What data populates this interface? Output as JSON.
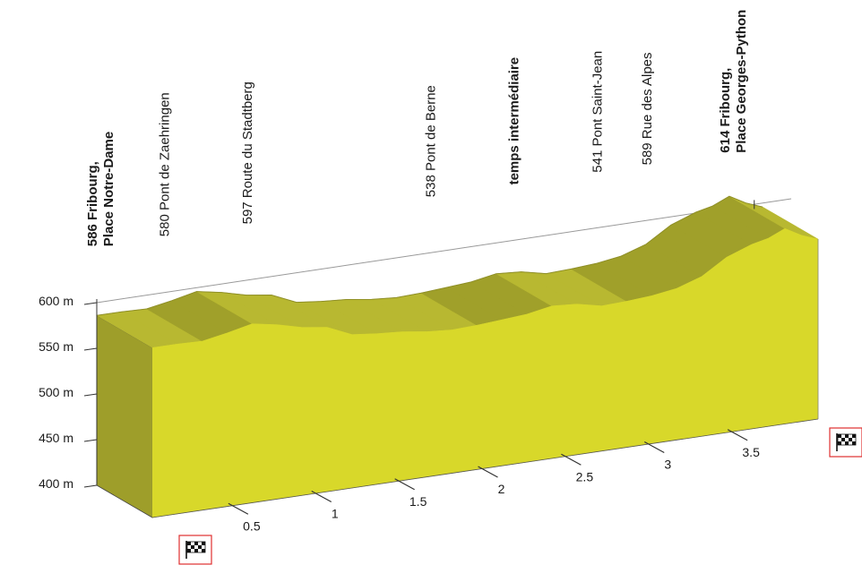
{
  "chart_data": {
    "type": "area",
    "title": "",
    "xlabel": "",
    "ylabel": "",
    "xlim": [
      0,
      4.0
    ],
    "ylim": [
      400,
      600
    ],
    "y_ticks": [
      {
        "value": 400,
        "label": "400 m"
      },
      {
        "value": 450,
        "label": "450 m"
      },
      {
        "value": 500,
        "label": "500 m"
      },
      {
        "value": 550,
        "label": "550 m"
      },
      {
        "value": 600,
        "label": "600 m"
      }
    ],
    "x_ticks": [
      {
        "value": 0.5,
        "label": "0.5"
      },
      {
        "value": 1,
        "label": "1"
      },
      {
        "value": 1.5,
        "label": "1.5"
      },
      {
        "value": 2,
        "label": "2"
      },
      {
        "value": 2.5,
        "label": "2.5"
      },
      {
        "value": 3,
        "label": "3"
      },
      {
        "value": 3.5,
        "label": "3.5"
      }
    ],
    "x": [
      0,
      0.15,
      0.3,
      0.45,
      0.6,
      0.75,
      0.9,
      1.05,
      1.2,
      1.35,
      1.5,
      1.65,
      1.8,
      1.95,
      2.1,
      2.25,
      2.4,
      2.55,
      2.7,
      2.85,
      3.0,
      3.15,
      3.3,
      3.45,
      3.6,
      3.7,
      3.8,
      3.9,
      4.0
    ],
    "y": [
      586,
      586,
      585,
      590,
      596,
      591,
      584,
      580,
      568,
      565,
      563,
      559,
      557,
      558,
      560,
      562,
      567,
      565,
      559,
      560,
      562,
      566,
      575,
      592,
      602,
      606,
      614,
      604,
      597
    ],
    "annotations": [
      {
        "km": 0.0,
        "lines": [
          "586 Fribourg,",
          "Place Notre-Dame"
        ],
        "bold": true
      },
      {
        "km": 0.4,
        "lines": [
          "580 Pont de Zaehringen"
        ],
        "bold": false
      },
      {
        "km": 0.9,
        "lines": [
          "597 Route du Stadtberg"
        ],
        "bold": false
      },
      {
        "km": 2.0,
        "lines": [
          "538 Pont de Berne"
        ],
        "bold": false
      },
      {
        "km": 2.5,
        "lines": [
          "temps intermédiaire"
        ],
        "bold": true
      },
      {
        "km": 3.0,
        "lines": [
          "541 Pont Saint-Jean"
        ],
        "bold": false
      },
      {
        "km": 3.3,
        "lines": [
          "589 Rue des Alpes"
        ],
        "bold": false
      },
      {
        "km": 3.8,
        "lines": [
          "614 Fribourg,",
          "Place Georges-Python"
        ],
        "bold": true
      }
    ]
  },
  "colors": {
    "front_face": "#d8d82a",
    "top_surface": "#b8b831",
    "top_shadow": "#a0a02a",
    "left_side": "#9e9e2a",
    "axis": "#333333",
    "flag_box": "#e03030"
  },
  "icons": {
    "start": "checkered-flag-icon",
    "finish": "checkered-flag-icon"
  }
}
